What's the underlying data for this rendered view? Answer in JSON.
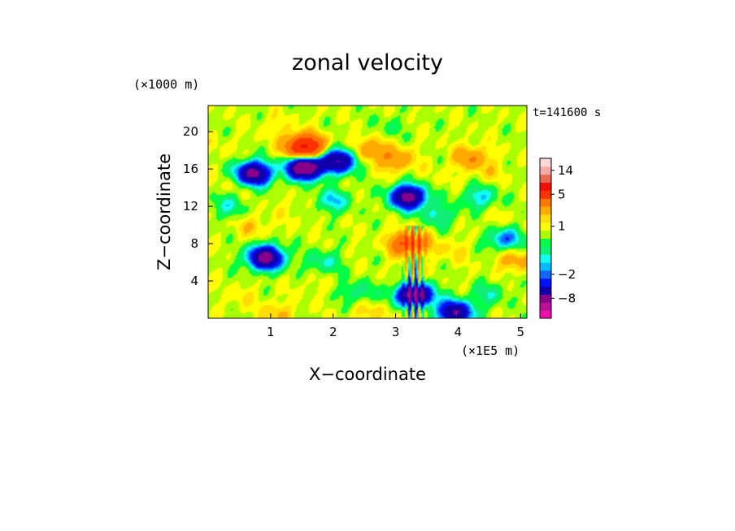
{
  "chart_data": {
    "type": "heatmap",
    "title": "zonal velocity",
    "xlabel": "X−coordinate",
    "ylabel": "Z−coordinate",
    "x_unit": "(×1E5 m)",
    "y_unit": "(×1000 m)",
    "time_label": "t=141600 s",
    "xlim": [
      0,
      5.1
    ],
    "ylim": [
      0,
      22.8
    ],
    "x_ticks": [
      {
        "value": 1,
        "label": "1"
      },
      {
        "value": 2,
        "label": "2"
      },
      {
        "value": 3,
        "label": "3"
      },
      {
        "value": 4,
        "label": "4"
      },
      {
        "value": 5,
        "label": "5"
      }
    ],
    "y_ticks": [
      {
        "value": 4,
        "label": "4"
      },
      {
        "value": 8,
        "label": "8"
      },
      {
        "value": 12,
        "label": "12"
      },
      {
        "value": 16,
        "label": "16"
      },
      {
        "value": 20,
        "label": "20"
      }
    ],
    "colorbar": {
      "levels": [
        -14,
        -11,
        -8,
        -5,
        -3,
        -2,
        -1.5,
        -1,
        -0.5,
        0,
        0.5,
        1,
        1.5,
        2,
        3,
        5,
        8,
        11,
        14,
        17
      ],
      "colors": [
        "#ee11aa",
        "#bb1199",
        "#880088",
        "#1100aa",
        "#0011ff",
        "#1166ff",
        "#00bbff",
        "#11ffee",
        "#11ee77",
        "#00ff44",
        "#aaff00",
        "#ffff00",
        "#ffdd00",
        "#ffaa00",
        "#ff7700",
        "#ff3300",
        "#ee1100",
        "#ee6655",
        "#f6aaa6",
        "#fbd8d4"
      ],
      "labeled_ticks": [
        {
          "value": 14,
          "label": "14"
        },
        {
          "value": 5,
          "label": "5"
        },
        {
          "value": 1,
          "label": "1"
        },
        {
          "value": -2,
          "label": "−2"
        },
        {
          "value": -8,
          "label": "−8"
        }
      ]
    },
    "field_features": [
      {
        "x": 0.72,
        "z": 15.5,
        "value": -6
      },
      {
        "x": 1.55,
        "z": 16.2,
        "value": -8
      },
      {
        "x": 2.1,
        "z": 16.9,
        "value": -5
      },
      {
        "x": 0.92,
        "z": 6.5,
        "value": -6
      },
      {
        "x": 3.2,
        "z": 13.0,
        "value": -6
      },
      {
        "x": 3.3,
        "z": 2.5,
        "value": -7
      },
      {
        "x": 3.95,
        "z": 0.6,
        "value": -5
      },
      {
        "x": 1.55,
        "z": 18.3,
        "value": 9
      },
      {
        "x": 2.55,
        "z": 18.0,
        "value": 3
      },
      {
        "x": 4.2,
        "z": 17.2,
        "value": 3
      },
      {
        "x": 3.0,
        "z": 17.0,
        "value": 3
      },
      {
        "x": 3.22,
        "z": 8.0,
        "value": 6
      },
      {
        "x": 4.9,
        "z": 6.2,
        "value": 2.5
      },
      {
        "x": 2.0,
        "z": 12.6,
        "value": -1
      },
      {
        "x": 4.35,
        "z": 13.0,
        "value": -1
      },
      {
        "x": 1.85,
        "z": 6.0,
        "value": -0.5
      },
      {
        "x": 3.7,
        "z": 11.0,
        "value": -0.6
      },
      {
        "x": 0.3,
        "z": 12.0,
        "value": -0.5
      },
      {
        "x": 2.4,
        "z": 2.8,
        "value": -0.4
      },
      {
        "x": 4.5,
        "z": 2.6,
        "value": -0.3
      },
      {
        "x": 4.75,
        "z": 8.5,
        "value": -1.8
      },
      {
        "x": 2.9,
        "z": 20.5,
        "value": 0.3
      },
      {
        "x": 1.1,
        "z": 20.5,
        "value": 1.5
      },
      {
        "x": 0.2,
        "z": 18.0,
        "value": 1.2
      },
      {
        "x": 0.7,
        "z": 9.8,
        "value": 1.8
      },
      {
        "x": 1.3,
        "z": 11.6,
        "value": 1.2
      },
      {
        "x": 2.9,
        "z": 13.8,
        "value": 1.0
      },
      {
        "x": 2.5,
        "z": 9.8,
        "value": 0.9
      },
      {
        "x": 1.7,
        "z": 3.6,
        "value": 1.2
      },
      {
        "x": 0.5,
        "z": 2.2,
        "value": 1.4
      },
      {
        "x": 3.1,
        "z": 4.8,
        "value": 1.0
      },
      {
        "x": 3.9,
        "z": 7.2,
        "value": 1.6
      },
      {
        "x": 4.6,
        "z": 10.4,
        "value": 1.3
      },
      {
        "x": 4.5,
        "z": 15.6,
        "value": 1.5
      },
      {
        "x": 3.7,
        "z": 14.9,
        "value": 1.2
      },
      {
        "x": 2.6,
        "z": 0.6,
        "value": 1.8
      },
      {
        "x": 1.1,
        "z": 0.5,
        "value": 2.0
      },
      {
        "x": 0.45,
        "z": 14.5,
        "value": 1.6
      }
    ]
  }
}
